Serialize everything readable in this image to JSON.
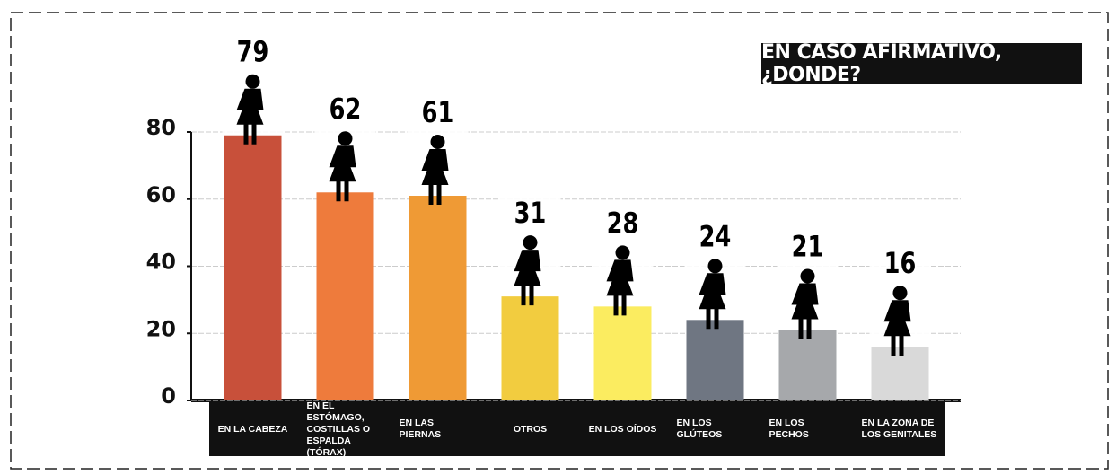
{
  "chart_data": {
    "type": "bar",
    "title": "EN CASO AFIRMATIVO, ¿DONDE?",
    "categories": [
      "EN LA CABEZA",
      "EN EL ESTÓMAGO, COSTILLAS O ESPALDA (TÓRAX)",
      "EN LAS PIERNAS",
      "OTROS",
      "EN LOS OÍDOS",
      "EN LOS GLÚTEOS",
      "EN LOS PECHOS",
      "EN LA ZONA DE LOS GENITALES"
    ],
    "values": [
      79,
      62,
      61,
      31,
      28,
      24,
      21,
      16
    ],
    "colors": [
      "#c8503a",
      "#ee7b3c",
      "#ef9a35",
      "#f2cc3f",
      "#fbec60",
      "#6f7682",
      "#a6a8ab",
      "#d9d9d9"
    ],
    "ylim": [
      0,
      80
    ],
    "yticks": [
      0,
      20,
      40,
      60,
      80
    ],
    "grid": true
  }
}
